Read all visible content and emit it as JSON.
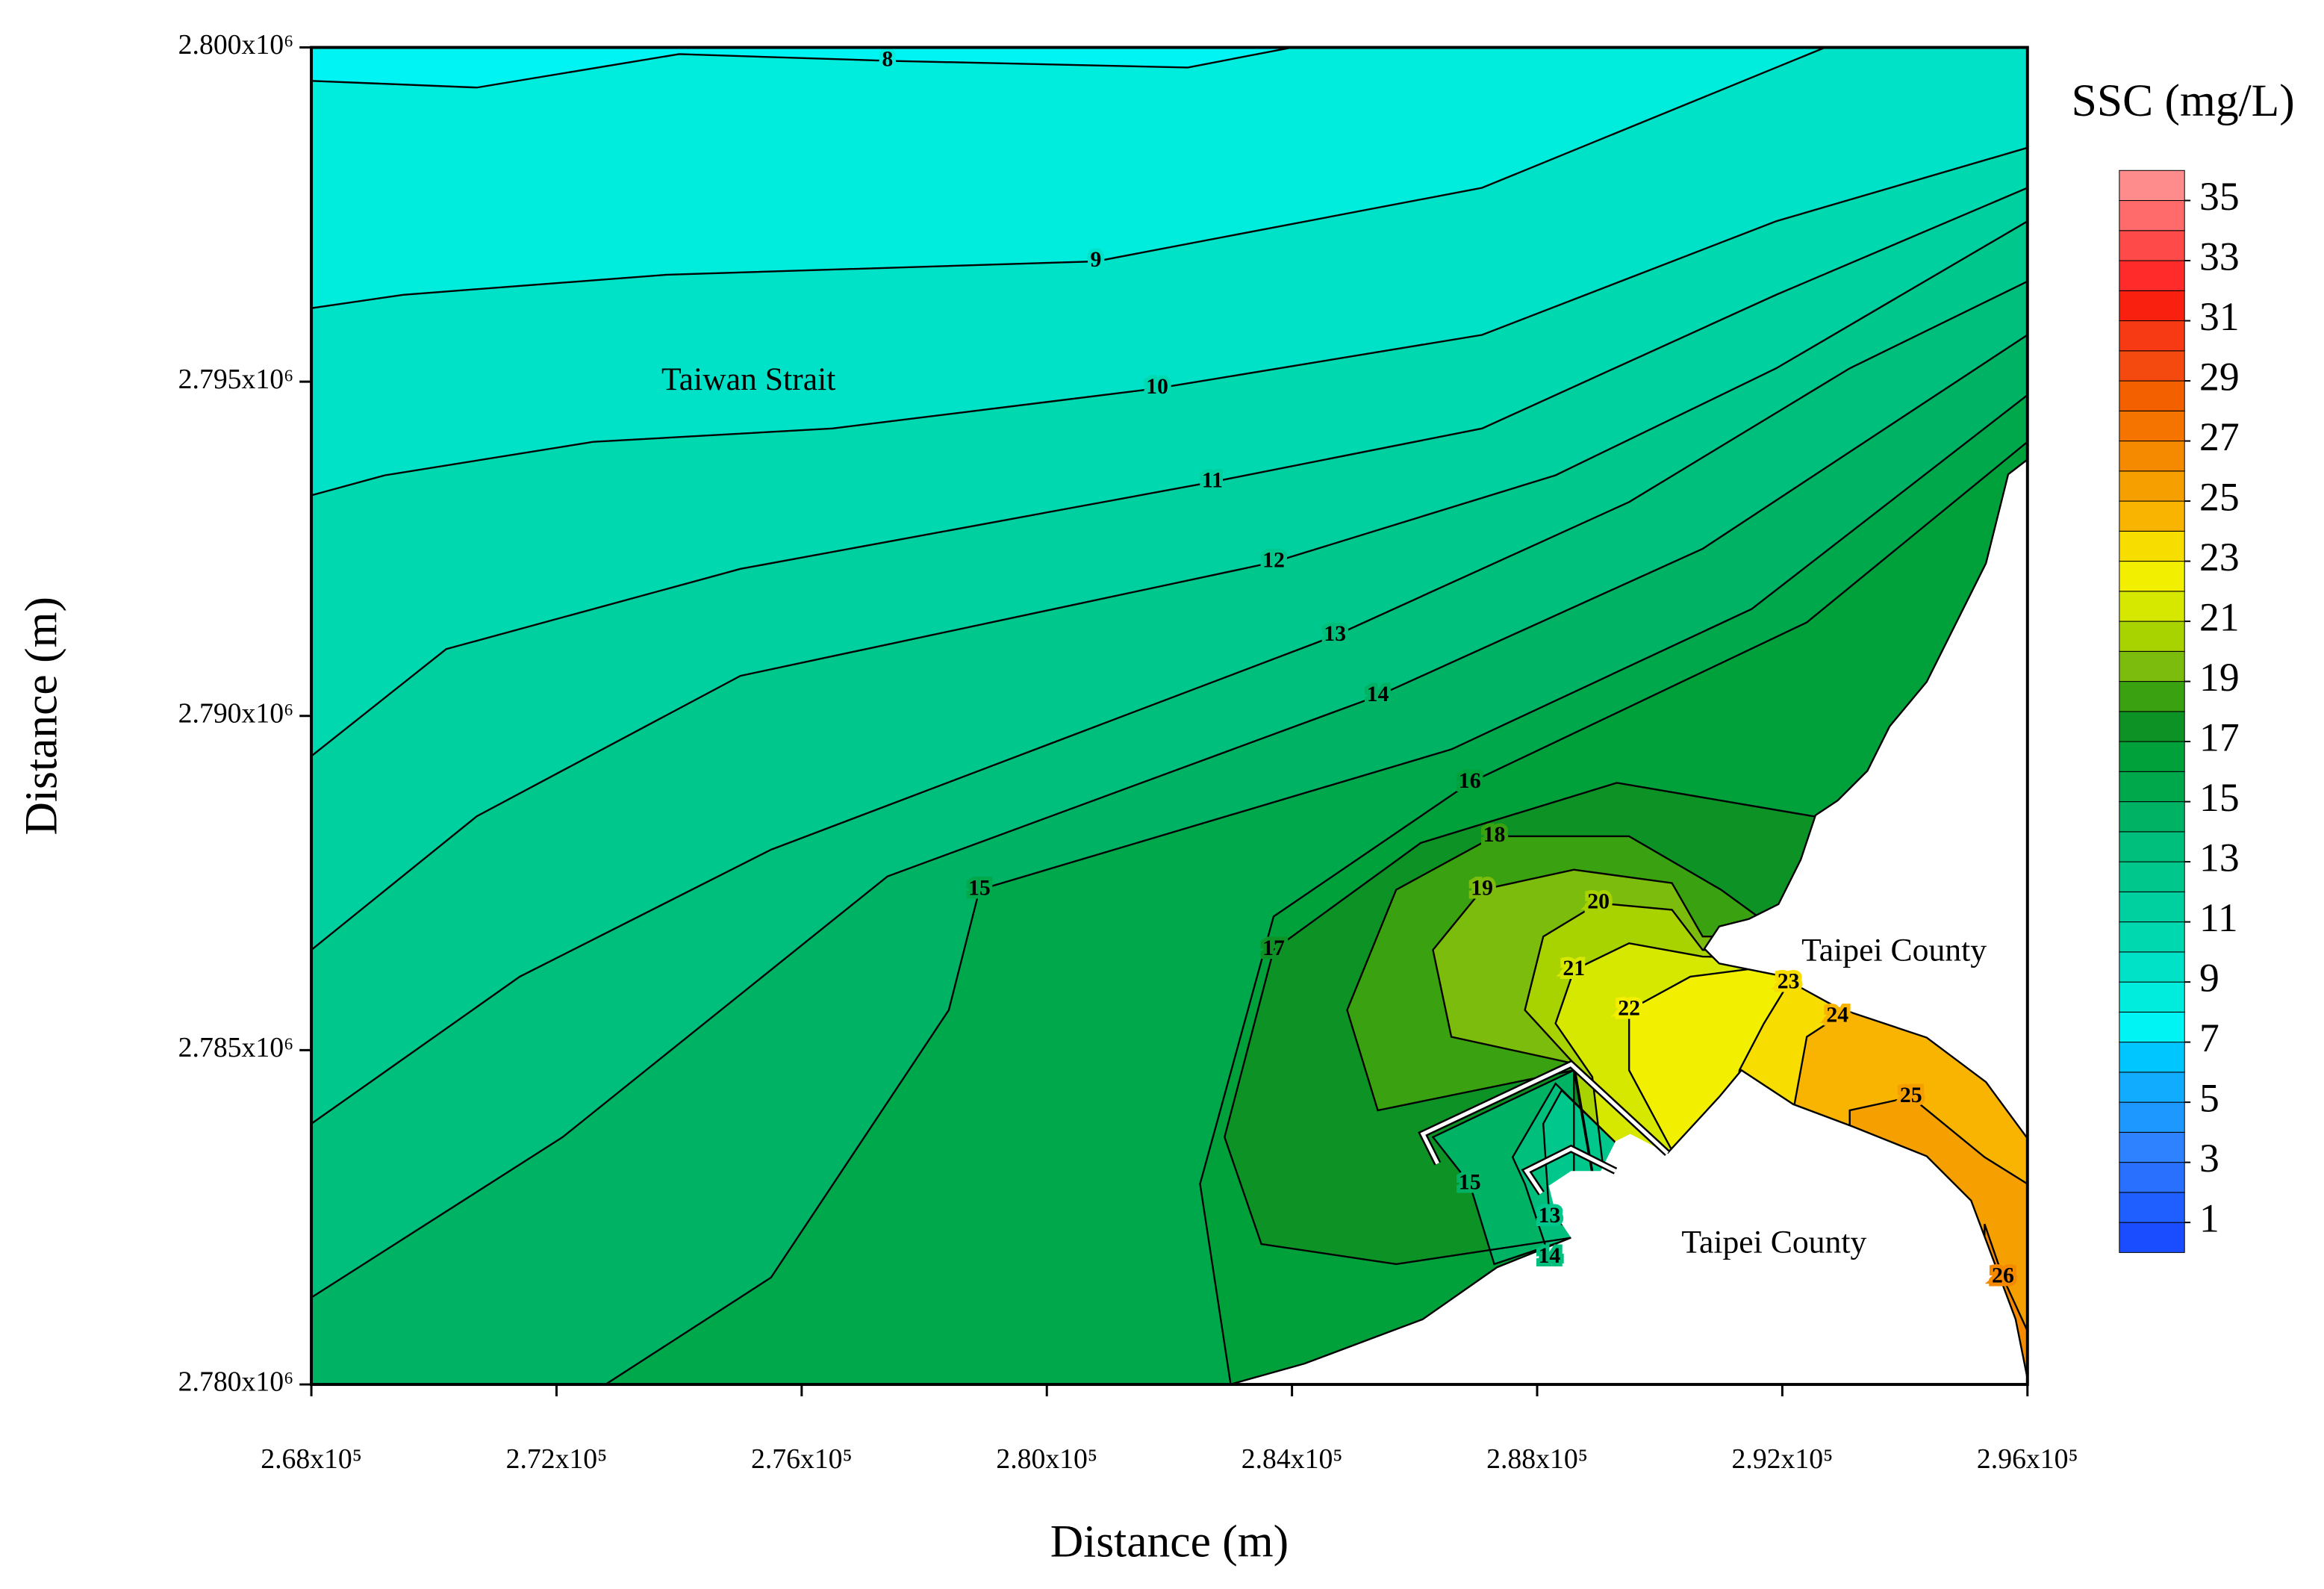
{
  "chart_data": {
    "type": "contour",
    "xlabel": "Distance (m)",
    "ylabel": "Distance (m)",
    "xlim": [
      268000,
      296000
    ],
    "ylim": [
      2780000,
      2800000
    ],
    "xticks": [
      {
        "value": 268000,
        "label": "2.68x10⁵"
      },
      {
        "value": 272000,
        "label": "2.72x10⁵"
      },
      {
        "value": 276000,
        "label": "2.76x10⁵"
      },
      {
        "value": 280000,
        "label": "2.80x10⁵"
      },
      {
        "value": 284000,
        "label": "2.84x10⁵"
      },
      {
        "value": 288000,
        "label": "2.88x10⁵"
      },
      {
        "value": 292000,
        "label": "2.92x10⁵"
      },
      {
        "value": 296000,
        "label": "2.96x10⁵"
      }
    ],
    "yticks": [
      {
        "value": 2780000,
        "label": "2.780x10⁶"
      },
      {
        "value": 2785000,
        "label": "2.785x10⁶"
      },
      {
        "value": 2790000,
        "label": "2.790x10⁶"
      },
      {
        "value": 2795000,
        "label": "2.795x10⁶"
      },
      {
        "value": 2800000,
        "label": "2.800x10⁶"
      }
    ],
    "annotations": [
      "Taiwan Strait",
      "Taipei County",
      "Taipei County"
    ],
    "line_color": "#000000",
    "colorbar": {
      "title": "SSC (mg/L)",
      "lim": [
        0,
        36
      ],
      "ticks": [
        1,
        3,
        5,
        7,
        9,
        11,
        13,
        15,
        17,
        19,
        21,
        23,
        25,
        27,
        29,
        31,
        33,
        35
      ],
      "colors": [
        "#1a4dff",
        "#1f5fff",
        "#2a70ff",
        "#2f82ff",
        "#1d98ff",
        "#12acff",
        "#00c6ff",
        "#00f4f4",
        "#00ecdc",
        "#00e2c8",
        "#00d8b0",
        "#00cfa0",
        "#00c88c",
        "#00bf7c",
        "#00b364",
        "#00a84c",
        "#00a03a",
        "#0d9226",
        "#3aa210",
        "#7cbc0c",
        "#a8d200",
        "#d6e800",
        "#f2f000",
        "#f8de00",
        "#f8b400",
        "#f5a000",
        "#f58a00",
        "#f57400",
        "#f26000",
        "#f44a10",
        "#f83a14",
        "#fa2010",
        "#ff2a2a",
        "#ff4a4a",
        "#ff6a6a",
        "#ff8c8c"
      ]
    },
    "contours": [
      {
        "level": 8,
        "x": [
          268000,
          270700,
          274000,
          277400,
          282300,
          284000
        ],
        "y": [
          2799500,
          2799400,
          2799900,
          2799800,
          2799700,
          2800000
        ]
      },
      {
        "level": 9,
        "x": [
          268000,
          269500,
          273800,
          280800,
          287100,
          292700
        ],
        "y": [
          2796100,
          2796300,
          2796600,
          2796800,
          2797900,
          2800000
        ]
      },
      {
        "level": 10,
        "x": [
          268000,
          269200,
          272600,
          276500,
          281800,
          287100,
          291900,
          296000
        ],
        "y": [
          2793300,
          2793600,
          2794100,
          2794300,
          2794900,
          2795700,
          2797400,
          2798500
        ]
      },
      {
        "level": 11,
        "x": [
          268000,
          270200,
          275000,
          282700,
          287100,
          291900,
          296000
        ],
        "y": [
          2789400,
          2791000,
          2792200,
          2793500,
          2794300,
          2796300,
          2797900
        ]
      },
      {
        "level": 12,
        "x": [
          268000,
          270700,
          275000,
          283700,
          288300,
          291900,
          296000
        ],
        "y": [
          2786500,
          2788500,
          2790600,
          2792300,
          2793600,
          2795200,
          2797400
        ]
      },
      {
        "level": 13,
        "x": [
          268000,
          271400,
          275500,
          284700,
          289500,
          293100,
          296000
        ],
        "y": [
          2783900,
          2786100,
          2788000,
          2791200,
          2793200,
          2795200,
          2796500
        ]
      },
      {
        "level": 14,
        "x": [
          268000,
          272100,
          277400,
          285400,
          290700,
          296000
        ],
        "y": [
          2781300,
          2783700,
          2787600,
          2790300,
          2792500,
          2795700
        ]
      },
      {
        "level": 15,
        "x": [
          272800,
          275500,
          278400,
          278900,
          286600,
          291500,
          296000
        ],
        "y": [
          2780000,
          2781600,
          2785600,
          2787400,
          2789500,
          2791600,
          2794800
        ]
      },
      {
        "level": 16,
        "x": [
          283000,
          282500,
          283700,
          286900,
          292400,
          296000
        ],
        "y": [
          2780000,
          2783000,
          2787000,
          2789000,
          2791400,
          2794100
        ]
      },
      {
        "level": 17,
        "x": [
          288600,
          288600,
          285700,
          283500,
          282900,
          283700,
          286100,
          289300,
          292500,
          296000
        ],
        "y": [
          2780000,
          2782200,
          2781800,
          2782100,
          2783700,
          2786500,
          2788100,
          2789000,
          2788500,
          2788300
        ]
      },
      {
        "level": 18,
        "x": [
          289500,
          288600,
          285400,
          284900,
          285700,
          287300,
          289500,
          291000,
          291600,
          296000
        ],
        "y": [
          2780000,
          2784700,
          2784100,
          2785600,
          2787400,
          2788200,
          2788200,
          2787400,
          2787000,
          2787400
        ]
      },
      {
        "level": 19,
        "x": [
          289500,
          288600,
          286600,
          286300,
          287100,
          288600,
          290200,
          290700,
          296000
        ],
        "y": [
          2780000,
          2784800,
          2785200,
          2786500,
          2787400,
          2787700,
          2787500,
          2786700,
          2786700
        ]
      },
      {
        "level": 20,
        "x": [
          289500,
          288600,
          287800,
          288100,
          289000,
          290200,
          290700,
          296000
        ],
        "y": [
          2780000,
          2784800,
          2785600,
          2786700,
          2787200,
          2787100,
          2786500,
          2786500
        ]
      },
      {
        "level": 21,
        "x": [
          289500,
          288900,
          288300,
          288600,
          289500,
          290700,
          296000
        ],
        "y": [
          2780000,
          2784600,
          2785400,
          2786200,
          2786600,
          2786400,
          2786300
        ]
      },
      {
        "level": 22,
        "x": [
          290200,
          290200,
          289500,
          289500,
          290500,
          292200,
          296000
        ],
        "y": [
          2780000,
          2783500,
          2784700,
          2785600,
          2786100,
          2786300,
          2789600
        ]
      },
      {
        "level": 23,
        "x": [
          291000,
          291300,
          291700,
          292100,
          292400,
          296000
        ],
        "y": [
          2780000,
          2784700,
          2785400,
          2786000,
          2786500,
          2789800
        ]
      },
      {
        "level": 24,
        "x": [
          292200,
          292200,
          292400,
          292900,
          293100,
          296000
        ],
        "y": [
          2780000,
          2784200,
          2785200,
          2785500,
          2786300,
          2790100
        ]
      },
      {
        "level": 25,
        "x": [
          293100,
          293100,
          294100,
          295300,
          296000
        ],
        "y": [
          2780000,
          2784100,
          2784300,
          2783400,
          2783000
        ]
      },
      {
        "level": 26,
        "x": [
          295300,
          295300,
          295600,
          296000
        ],
        "y": [
          2780000,
          2782400,
          2781600,
          2780800
        ]
      },
      {
        "level": 15,
        "closed": true,
        "side": "low",
        "x": [
          288600,
          286300,
          286900,
          287300,
          288600
        ],
        "y": [
          2784700,
          2783700,
          2783000,
          2781800,
          2782200
        ]
      },
      {
        "level": 14,
        "closed": true,
        "side": "low",
        "x": [
          288300,
          287600,
          287800,
          288200,
          288600,
          289300
        ],
        "y": [
          2784500,
          2783400,
          2783000,
          2781900,
          2782200,
          2783600
        ]
      },
      {
        "level": 13,
        "closed": true,
        "side": "low",
        "x": [
          288400,
          288100,
          288200,
          288600,
          289300
        ],
        "y": [
          2784400,
          2783900,
          2782500,
          2782300,
          2783600
        ]
      }
    ]
  }
}
